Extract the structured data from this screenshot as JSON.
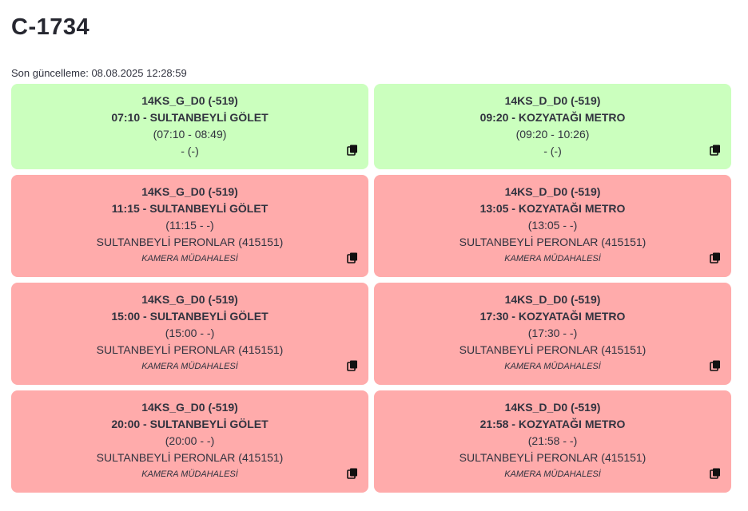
{
  "title": "C-1734",
  "updated": "Son güncelleme: 08.08.2025 12:28:59",
  "cards": [
    {
      "status": "green",
      "route": "14KS_G_D0 (-519)",
      "trip": "07:10 - SULTANBEYLİ GÖLET",
      "window": "(07:10 - 08:49)",
      "stop": "- (-)",
      "note": ""
    },
    {
      "status": "green",
      "route": "14KS_D_D0 (-519)",
      "trip": "09:20 - KOZYATAĞI METRO",
      "window": "(09:20 - 10:26)",
      "stop": "- (-)",
      "note": ""
    },
    {
      "status": "red",
      "route": "14KS_G_D0 (-519)",
      "trip": "11:15 - SULTANBEYLİ GÖLET",
      "window": "(11:15 - -)",
      "stop": "SULTANBEYLİ PERONLAR (415151)",
      "note": "KAMERA MÜDAHALESİ"
    },
    {
      "status": "red",
      "route": "14KS_D_D0 (-519)",
      "trip": "13:05 - KOZYATAĞI METRO",
      "window": "(13:05 - -)",
      "stop": "SULTANBEYLİ PERONLAR (415151)",
      "note": "KAMERA MÜDAHALESİ"
    },
    {
      "status": "red",
      "route": "14KS_G_D0 (-519)",
      "trip": "15:00 - SULTANBEYLİ GÖLET",
      "window": "(15:00 - -)",
      "stop": "SULTANBEYLİ PERONLAR (415151)",
      "note": "KAMERA MÜDAHALESİ"
    },
    {
      "status": "red",
      "route": "14KS_D_D0 (-519)",
      "trip": "17:30 - KOZYATAĞI METRO",
      "window": "(17:30 - -)",
      "stop": "SULTANBEYLİ PERONLAR (415151)",
      "note": "KAMERA MÜDAHALESİ"
    },
    {
      "status": "red",
      "route": "14KS_G_D0 (-519)",
      "trip": "20:00 - SULTANBEYLİ GÖLET",
      "window": "(20:00 - -)",
      "stop": "SULTANBEYLİ PERONLAR (415151)",
      "note": "KAMERA MÜDAHALESİ"
    },
    {
      "status": "red",
      "route": "14KS_D_D0 (-519)",
      "trip": "21:58 - KOZYATAĞI METRO",
      "window": "(21:58 - -)",
      "stop": "SULTANBEYLİ PERONLAR (415151)",
      "note": "KAMERA MÜDAHALESİ"
    }
  ],
  "colors": {
    "green": "#cbffbe",
    "red": "#ffabab",
    "text": "#31333f"
  },
  "icon": "copy-icon"
}
